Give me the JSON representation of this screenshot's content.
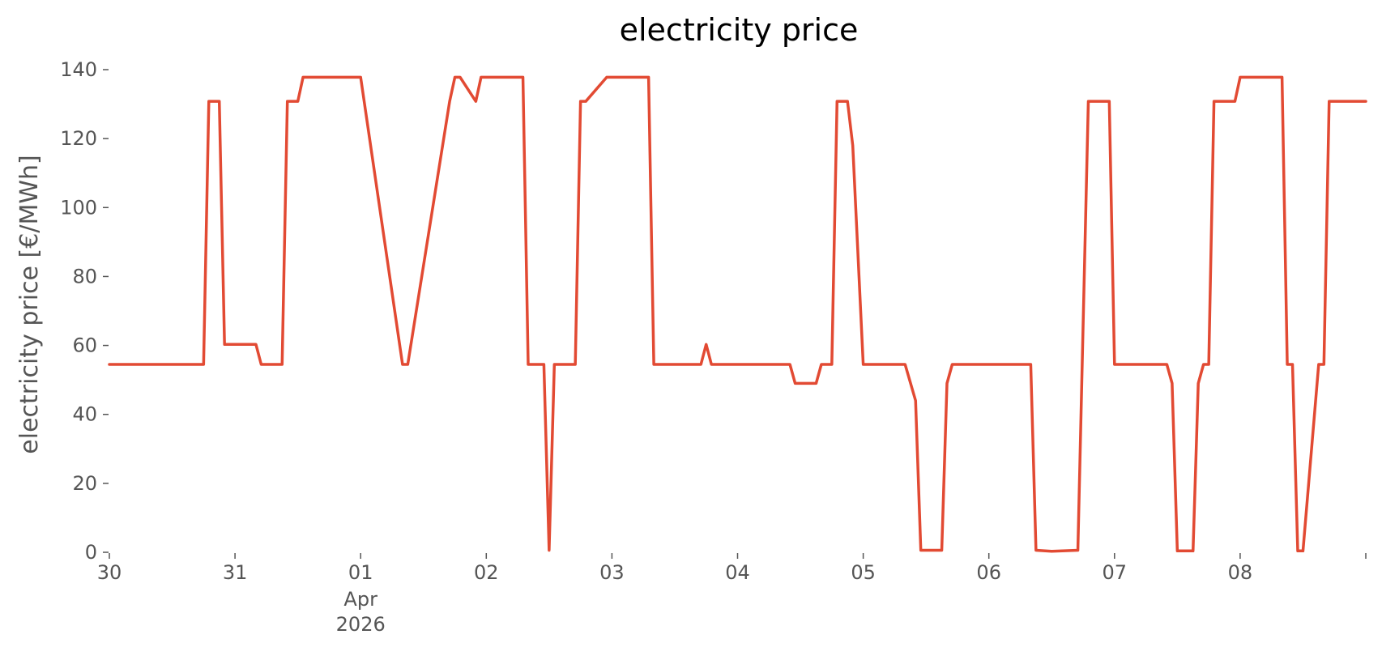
{
  "chart_data": {
    "type": "line",
    "title": "electricity price",
    "xlabel": "",
    "ylabel": "electricity price [€/MWh]",
    "grid": false,
    "x_unit": "date",
    "x_range": [
      "2026-03-30 00:00",
      "2026-04-08 24:00"
    ],
    "ylim": [
      0,
      140
    ],
    "y_ticks": [
      0,
      20,
      40,
      60,
      80,
      100,
      120,
      140
    ],
    "x_ticks": [
      {
        "at": "2026-03-30 00:00",
        "label": "30"
      },
      {
        "at": "2026-03-31 00:00",
        "label": "31"
      },
      {
        "at": "2026-04-01 00:00",
        "label": "01",
        "sublabel": "Apr",
        "sublabel2": "2026"
      },
      {
        "at": "2026-04-02 00:00",
        "label": "02"
      },
      {
        "at": "2026-04-03 00:00",
        "label": "03"
      },
      {
        "at": "2026-04-04 00:00",
        "label": "04"
      },
      {
        "at": "2026-04-05 00:00",
        "label": "05"
      },
      {
        "at": "2026-04-06 00:00",
        "label": "06"
      },
      {
        "at": "2026-04-07 00:00",
        "label": "07"
      },
      {
        "at": "2026-04-08 00:00",
        "label": "08"
      },
      {
        "at": "2026-04-09 00:00",
        "label": ""
      }
    ],
    "color": "#E24A33",
    "series": [
      {
        "x": [
          "2026-03-30 00:00",
          "2026-03-30 18:00",
          "2026-03-30 19:00",
          "2026-03-30 21:00",
          "2026-03-30 22:00",
          "2026-03-31 04:00",
          "2026-03-31 05:00",
          "2026-03-31 09:00",
          "2026-03-31 10:00",
          "2026-03-31 12:00",
          "2026-03-31 13:00",
          "2026-04-01 00:00",
          "2026-04-01 08:00",
          "2026-04-01 09:00",
          "2026-04-01 17:00",
          "2026-04-01 18:00",
          "2026-04-01 19:00",
          "2026-04-01 22:00",
          "2026-04-01 23:00",
          "2026-04-02 07:00",
          "2026-04-02 08:00",
          "2026-04-02 11:00",
          "2026-04-02 12:00",
          "2026-04-02 13:00",
          "2026-04-02 17:00",
          "2026-04-02 18:00",
          "2026-04-02 19:00",
          "2026-04-02 23:00",
          "2026-04-03 07:00",
          "2026-04-03 08:00",
          "2026-04-03 17:00",
          "2026-04-03 18:00",
          "2026-04-03 19:00",
          "2026-04-04 10:00",
          "2026-04-04 11:00",
          "2026-04-04 15:00",
          "2026-04-04 16:00",
          "2026-04-04 18:00",
          "2026-04-04 19:00",
          "2026-04-04 21:00",
          "2026-04-04 22:00",
          "2026-04-05 00:00",
          "2026-04-05 08:00",
          "2026-04-05 10:00",
          "2026-04-05 11:00",
          "2026-04-05 15:00",
          "2026-04-05 16:00",
          "2026-04-05 17:00",
          "2026-04-06 08:00",
          "2026-04-06 09:00",
          "2026-04-06 12:00",
          "2026-04-06 17:00",
          "2026-04-06 19:00",
          "2026-04-06 23:00",
          "2026-04-07 00:00",
          "2026-04-07 10:00",
          "2026-04-07 11:00",
          "2026-04-07 12:00",
          "2026-04-07 15:00",
          "2026-04-07 16:00",
          "2026-04-07 17:00",
          "2026-04-07 18:00",
          "2026-04-07 19:00",
          "2026-04-07 23:00",
          "2026-04-08 00:00",
          "2026-04-08 08:00",
          "2026-04-08 09:00",
          "2026-04-08 10:00",
          "2026-04-08 11:00",
          "2026-04-08 12:00",
          "2026-04-08 15:00",
          "2026-04-08 16:00",
          "2026-04-08 17:00",
          "2026-04-08 18:00",
          "2026-04-08 24:00"
        ],
        "values": [
          54.5,
          54.5,
          130.8,
          130.8,
          60.3,
          60.3,
          54.5,
          54.5,
          130.8,
          130.8,
          137.8,
          137.8,
          54.5,
          54.5,
          130.8,
          137.8,
          137.8,
          130.8,
          137.8,
          137.8,
          54.5,
          54.5,
          0.6,
          54.5,
          54.5,
          130.8,
          130.8,
          137.8,
          137.8,
          54.5,
          54.5,
          60.3,
          54.5,
          54.5,
          49.0,
          49.0,
          54.5,
          54.5,
          130.8,
          130.8,
          118.0,
          54.5,
          54.5,
          44.0,
          0.6,
          0.6,
          49.0,
          54.5,
          54.5,
          0.6,
          0.3,
          0.6,
          130.8,
          130.8,
          54.5,
          54.5,
          49.0,
          0.4,
          0.4,
          49.0,
          54.5,
          54.5,
          130.8,
          130.8,
          137.8,
          137.8,
          54.5,
          54.5,
          0.4,
          0.4,
          54.5,
          54.5,
          130.8,
          130.8,
          130.8
        ]
      }
    ]
  }
}
